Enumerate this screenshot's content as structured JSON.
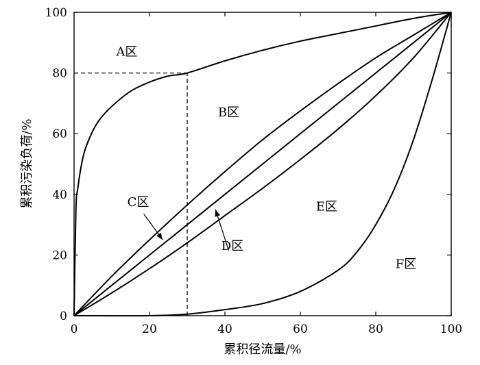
{
  "chart_data": {
    "type": "line",
    "xlabel": "累积径流量/%",
    "ylabel": "累积污染负荷/%",
    "xlim": [
      0,
      100
    ],
    "ylim": [
      0,
      100
    ],
    "xticks": [
      "0",
      "20",
      "40",
      "60",
      "80",
      "100"
    ],
    "yticks": [
      "0",
      "20",
      "40",
      "60",
      "80",
      "100"
    ],
    "grid": false,
    "series": [
      {
        "x": [
          0,
          0.5,
          1,
          2,
          3,
          5,
          7,
          10,
          15,
          20,
          25,
          30,
          40,
          50,
          60,
          70,
          80,
          90,
          100
        ],
        "y": [
          0,
          35,
          42,
          50,
          55,
          61,
          65,
          69,
          74,
          77,
          79,
          80,
          84,
          87.5,
          90.5,
          93,
          95.5,
          98,
          100
        ]
      },
      {
        "x": [
          0,
          10,
          20,
          30,
          40,
          50,
          60,
          70,
          80,
          90,
          100
        ],
        "y": [
          0,
          13,
          25,
          36.5,
          47.5,
          58,
          67.5,
          76.5,
          85,
          92.5,
          100
        ]
      },
      {
        "x": [
          0,
          20,
          40,
          60,
          80,
          100
        ],
        "y": [
          0,
          20,
          40,
          60,
          80,
          100
        ]
      },
      {
        "x": [
          0,
          10,
          20,
          30,
          40,
          50,
          60,
          70,
          80,
          90,
          100
        ],
        "y": [
          0,
          7.5,
          15.5,
          24,
          33,
          42,
          51.5,
          61.5,
          72.5,
          85,
          100
        ]
      },
      {
        "x": [
          0,
          20,
          30,
          40,
          50,
          60,
          70,
          75,
          80,
          85,
          90,
          95,
          100
        ],
        "y": [
          0,
          0,
          0.5,
          2,
          4,
          8,
          15,
          21,
          30,
          42,
          58,
          78,
          100
        ]
      }
    ],
    "reference_lines": [
      {
        "x": [
          0,
          30
        ],
        "y": [
          80,
          80
        ]
      },
      {
        "x": [
          30,
          30
        ],
        "y": [
          0,
          80
        ]
      }
    ],
    "annotations": [
      {
        "text": "A区",
        "x": 14,
        "y": 87
      },
      {
        "text": "B区",
        "x": 41,
        "y": 67
      },
      {
        "text": "C区",
        "x": 17,
        "y": 37.5
      },
      {
        "text": "D区",
        "x": 42,
        "y": 23
      },
      {
        "text": "E区",
        "x": 67,
        "y": 36
      },
      {
        "text": "F区",
        "x": 88,
        "y": 17
      }
    ],
    "arrows": [
      {
        "from": [
          18.5,
          33.5
        ],
        "to": [
          23.5,
          25
        ]
      },
      {
        "from": [
          41,
          21.5
        ],
        "to": [
          37.5,
          35
        ]
      }
    ]
  }
}
